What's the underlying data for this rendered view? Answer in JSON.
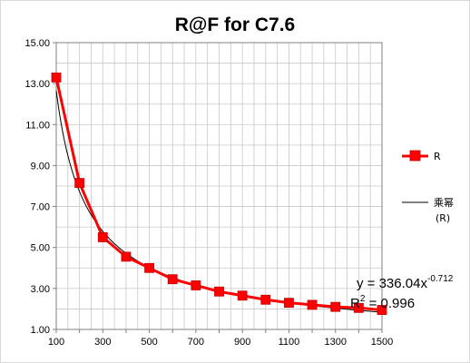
{
  "chart_data": {
    "type": "line",
    "title": "R@F for C7.6",
    "xlabel": "",
    "ylabel": "",
    "xlim": [
      100,
      1500
    ],
    "ylim": [
      1.0,
      15.0
    ],
    "x_ticks": [
      "100",
      "300",
      "500",
      "700",
      "900",
      "1100",
      "1300",
      "1500"
    ],
    "y_ticks": [
      "1.00",
      "3.00",
      "5.00",
      "7.00",
      "9.00",
      "11.00",
      "13.00",
      "15.00"
    ],
    "grid": true,
    "legend_position": "right",
    "series": [
      {
        "name": "R",
        "color": "#ff0000",
        "marker_color": "#ff0000",
        "x": [
          100,
          200,
          300,
          400,
          500,
          600,
          700,
          800,
          900,
          1000,
          1100,
          1200,
          1300,
          1400,
          1500
        ],
        "y": [
          13.3,
          8.15,
          5.5,
          4.55,
          4.0,
          3.45,
          3.15,
          2.85,
          2.65,
          2.45,
          2.3,
          2.2,
          2.1,
          2.05,
          1.95
        ]
      },
      {
        "name": "乘幂",
        "name_sub": "(R)",
        "color": "#000000",
        "trendline": {
          "type": "power",
          "a": 336.04,
          "b": -0.712
        }
      }
    ],
    "annotations": {
      "equation_prefix": "y = 336.04x",
      "equation_exponent": "-0.712",
      "r2_prefix": "R",
      "r2_sup": "2",
      "r2_suffix": " = 0.996"
    }
  }
}
